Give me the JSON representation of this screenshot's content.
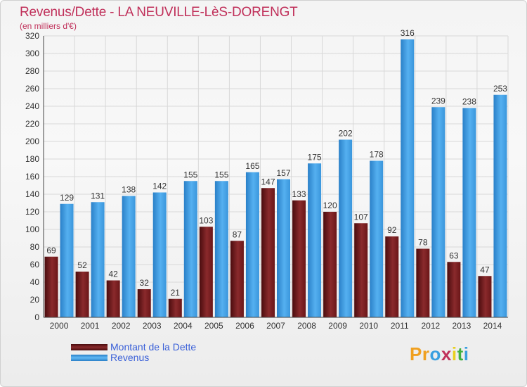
{
  "title": "Revenus/Dette - LA NEUVILLE-LèS-DORENGT",
  "subtitle": "(en milliers d'€)",
  "chart_data": {
    "type": "bar",
    "categories": [
      "2000",
      "2001",
      "2002",
      "2003",
      "2004",
      "2005",
      "2006",
      "2007",
      "2008",
      "2009",
      "2010",
      "2011",
      "2012",
      "2013",
      "2014"
    ],
    "series": [
      {
        "name": "Montant de la Dette",
        "values": [
          69,
          52,
          42,
          32,
          21,
          103,
          87,
          147,
          133,
          120,
          107,
          92,
          78,
          63,
          47
        ],
        "color": "#7a1f22"
      },
      {
        "name": "Revenus",
        "values": [
          129,
          131,
          138,
          142,
          155,
          155,
          165,
          157,
          175,
          202,
          178,
          316,
          239,
          238,
          253
        ],
        "color": "#3d9ce0"
      }
    ],
    "yticks": [
      0,
      20,
      40,
      60,
      80,
      100,
      120,
      140,
      160,
      180,
      200,
      220,
      240,
      260,
      280,
      300,
      320
    ],
    "ylim": [
      0,
      320
    ],
    "grid": true,
    "legend_position": "bottom-left"
  },
  "legend": {
    "debt_label": "Montant de la Dette",
    "revenue_label": "Revenus"
  },
  "logo": {
    "text": "Proxiti",
    "letters": [
      {
        "ch": "P",
        "color": "#f0a020"
      },
      {
        "ch": "r",
        "color": "#f0a020"
      },
      {
        "ch": "o",
        "color": "#3aa0e0"
      },
      {
        "ch": "x",
        "color": "#c0305a"
      },
      {
        "ch": "i",
        "color": "#e8d020"
      },
      {
        "ch": "t",
        "color": "#40b040"
      },
      {
        "ch": "i",
        "color": "#3aa0e0"
      }
    ]
  }
}
